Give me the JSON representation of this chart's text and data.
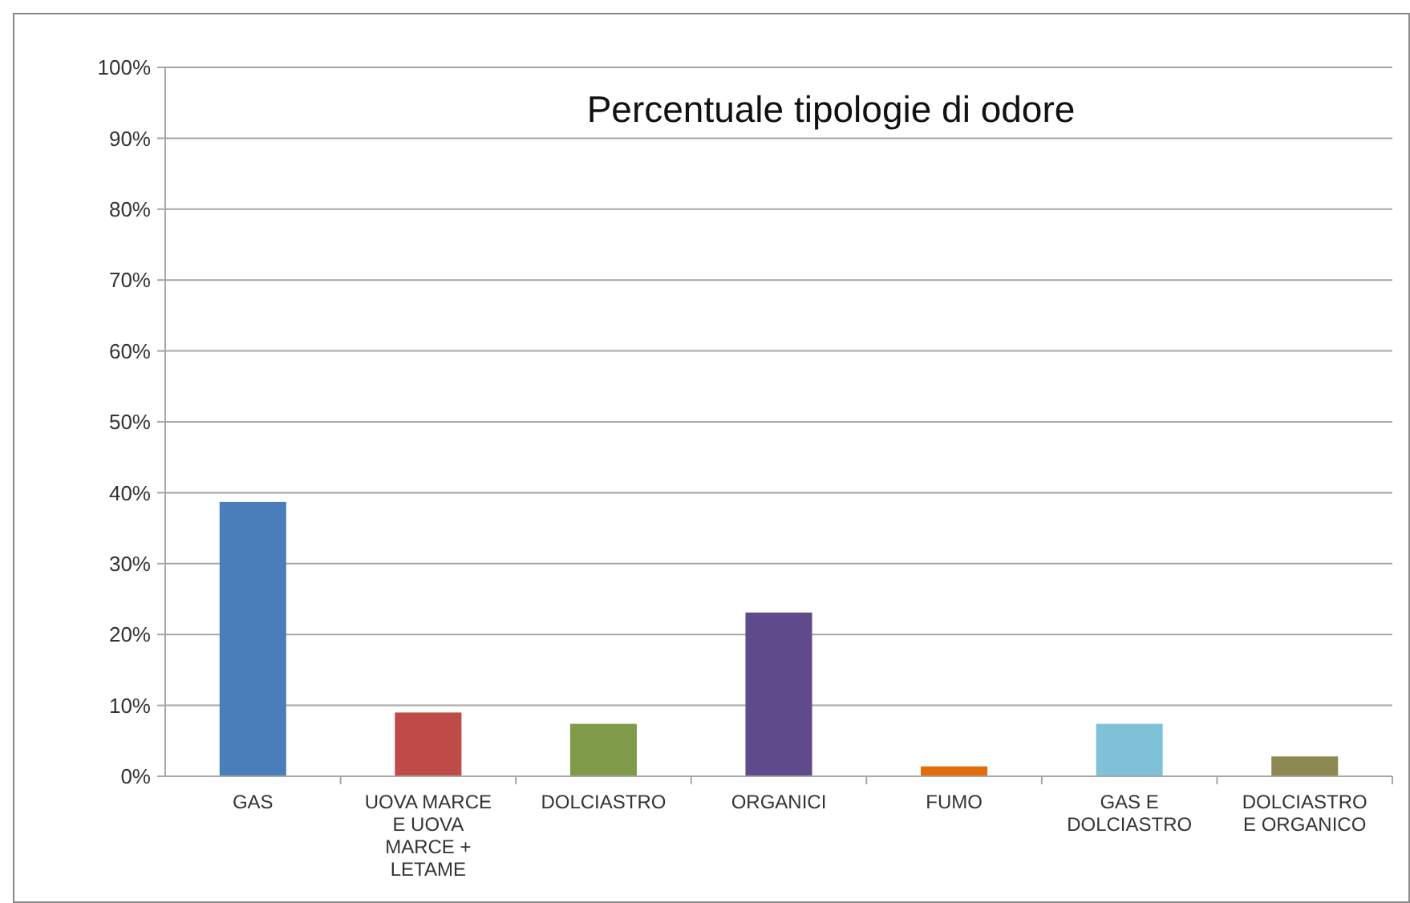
{
  "chart_data": {
    "type": "bar",
    "title": "Percentuale tipologie di odore",
    "categories": [
      "GAS",
      "UOVA MARCE E UOVA MARCE + LETAME",
      "DOLCIASTRO",
      "ORGANICI",
      "FUMO",
      "GAS E DOLCIASTRO",
      "DOLCIASTRO E ORGANICO"
    ],
    "values": [
      38.7,
      9,
      7.4,
      23.1,
      1.4,
      7.4,
      2.8
    ],
    "colors": [
      "#4a7ebb",
      "#be4b48",
      "#7f9a48",
      "#5f4b8b",
      "#e46c0a",
      "#7fc2d8",
      "#8c8a52"
    ],
    "ylim": [
      0,
      100
    ],
    "yticks": [
      {
        "value": 0,
        "label": "0%"
      },
      {
        "value": 10,
        "label": "10%"
      },
      {
        "value": 20,
        "label": "20%"
      },
      {
        "value": 30,
        "label": "30%"
      },
      {
        "value": 40,
        "label": "40%"
      },
      {
        "value": 50,
        "label": "50%"
      },
      {
        "value": 60,
        "label": "60%"
      },
      {
        "value": 70,
        "label": "70%"
      },
      {
        "value": 80,
        "label": "80%"
      },
      {
        "value": 90,
        "label": "90%"
      },
      {
        "value": 100,
        "label": "100%"
      }
    ],
    "grid": "y"
  }
}
